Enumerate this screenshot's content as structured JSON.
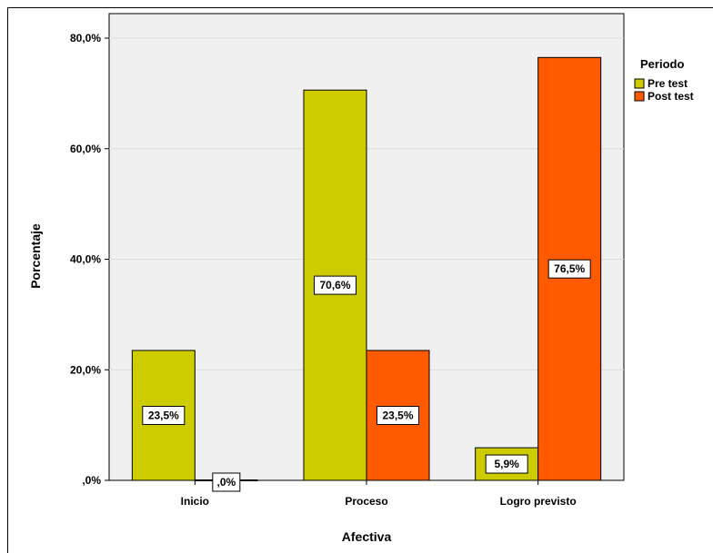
{
  "chart_data": {
    "type": "bar",
    "categories": [
      "Inicio",
      "Proceso",
      "Logro previsto"
    ],
    "series": [
      {
        "name": "Pre test",
        "values": [
          23.5,
          70.6,
          5.9
        ],
        "labels": [
          "23,5%",
          "70,6%",
          "5,9%"
        ],
        "color": "#cccc00"
      },
      {
        "name": "Post test",
        "values": [
          0.0,
          23.5,
          76.5
        ],
        "labels": [
          ",0%",
          "23,5%",
          "76,5%"
        ],
        "color": "#ff5a00"
      }
    ],
    "xlabel": "Afectiva",
    "ylabel": "Porcentaje",
    "ylim": [
      0,
      80
    ],
    "yticks": [
      0,
      20,
      40,
      60,
      80
    ],
    "ytick_labels": [
      ",0%",
      "20,0%",
      "40,0%",
      "60,0%",
      "80,0%"
    ],
    "legend": {
      "title": "Periodo",
      "placement": "top-right"
    },
    "grid": true,
    "plot_background": "#f0f0f0"
  }
}
